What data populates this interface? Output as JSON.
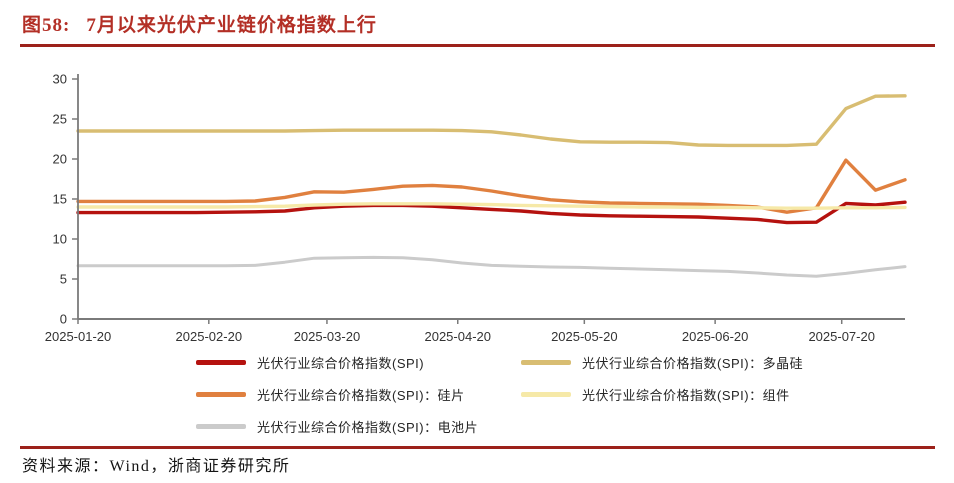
{
  "report": {
    "figure_label": "图58:",
    "figure_title": "7月以来光伏产业链价格指数上行",
    "source_text": "资料来源：Wind，浙商证券研究所"
  },
  "colors": {
    "title_red": "#b32f26",
    "rule_red": "#9c211a",
    "axis_line": "#7a7a7a",
    "tick_text": "#333333",
    "legend_text": "#262626",
    "background": "#ffffff"
  },
  "chart_data": {
    "type": "line",
    "title": "图58: 7月以来光伏产业链价格指数上行",
    "xlabel": "",
    "ylabel": "",
    "grid": false,
    "legend_position": "bottom",
    "ylim": [
      0,
      30
    ],
    "yticks": [
      0,
      5,
      10,
      15,
      20,
      25,
      30
    ],
    "xtick_labels": [
      "2025-01-20",
      "2025-02-20",
      "2025-03-20",
      "2025-04-20",
      "2025-05-20",
      "2025-06-20",
      "2025-07-20"
    ],
    "x_dates": [
      "2025-01-20",
      "2025-01-27",
      "2025-02-03",
      "2025-02-10",
      "2025-02-17",
      "2025-02-24",
      "2025-03-03",
      "2025-03-10",
      "2025-03-17",
      "2025-03-24",
      "2025-03-31",
      "2025-04-07",
      "2025-04-14",
      "2025-04-21",
      "2025-04-28",
      "2025-05-05",
      "2025-05-12",
      "2025-05-19",
      "2025-05-26",
      "2025-06-02",
      "2025-06-09",
      "2025-06-16",
      "2025-06-23",
      "2025-06-30",
      "2025-07-07",
      "2025-07-14",
      "2025-07-21",
      "2025-07-28",
      "2025-08-04"
    ],
    "series": [
      {
        "name": "光伏行业综合价格指数(SPI)",
        "color": "#b5120f",
        "values": [
          13.3,
          13.3,
          13.3,
          13.3,
          13.3,
          13.35,
          13.4,
          13.5,
          13.9,
          14.1,
          14.2,
          14.2,
          14.1,
          13.9,
          13.7,
          13.5,
          13.2,
          13.0,
          12.9,
          12.85,
          12.8,
          12.75,
          12.6,
          12.45,
          12.05,
          12.1,
          14.45,
          14.25,
          14.6
        ]
      },
      {
        "name": "光伏行业综合价格指数(SPI)：多晶硅",
        "color": "#d8bd72",
        "values": [
          23.5,
          23.5,
          23.5,
          23.5,
          23.5,
          23.5,
          23.5,
          23.5,
          23.55,
          23.6,
          23.6,
          23.6,
          23.6,
          23.55,
          23.4,
          23.0,
          22.5,
          22.15,
          22.1,
          22.1,
          22.05,
          21.75,
          21.7,
          21.7,
          21.7,
          21.85,
          26.3,
          27.85,
          27.9
        ]
      },
      {
        "name": "光伏行业综合价格指数(SPI)：硅片",
        "color": "#e0803f",
        "values": [
          14.7,
          14.7,
          14.7,
          14.7,
          14.7,
          14.7,
          14.75,
          15.2,
          15.9,
          15.85,
          16.2,
          16.6,
          16.7,
          16.5,
          16.0,
          15.4,
          14.9,
          14.65,
          14.5,
          14.45,
          14.4,
          14.35,
          14.2,
          14.0,
          13.35,
          13.9,
          19.85,
          16.1,
          17.4
        ]
      },
      {
        "name": "光伏行业综合价格指数(SPI)：组件",
        "color": "#f6e9a8",
        "values": [
          14.0,
          14.0,
          14.0,
          14.0,
          14.0,
          14.0,
          14.05,
          14.1,
          14.25,
          14.35,
          14.4,
          14.4,
          14.4,
          14.35,
          14.3,
          14.2,
          14.15,
          14.1,
          14.05,
          14.0,
          14.0,
          13.95,
          13.95,
          13.9,
          13.85,
          13.85,
          13.9,
          13.9,
          13.95
        ]
      },
      {
        "name": "光伏行业综合价格指数(SPI)：电池片",
        "color": "#cbcbcb",
        "values": [
          6.65,
          6.65,
          6.65,
          6.65,
          6.65,
          6.65,
          6.7,
          7.1,
          7.6,
          7.65,
          7.7,
          7.65,
          7.4,
          7.0,
          6.7,
          6.6,
          6.5,
          6.45,
          6.35,
          6.25,
          6.15,
          6.05,
          5.95,
          5.75,
          5.5,
          5.35,
          5.7,
          6.15,
          6.55
        ]
      }
    ]
  }
}
